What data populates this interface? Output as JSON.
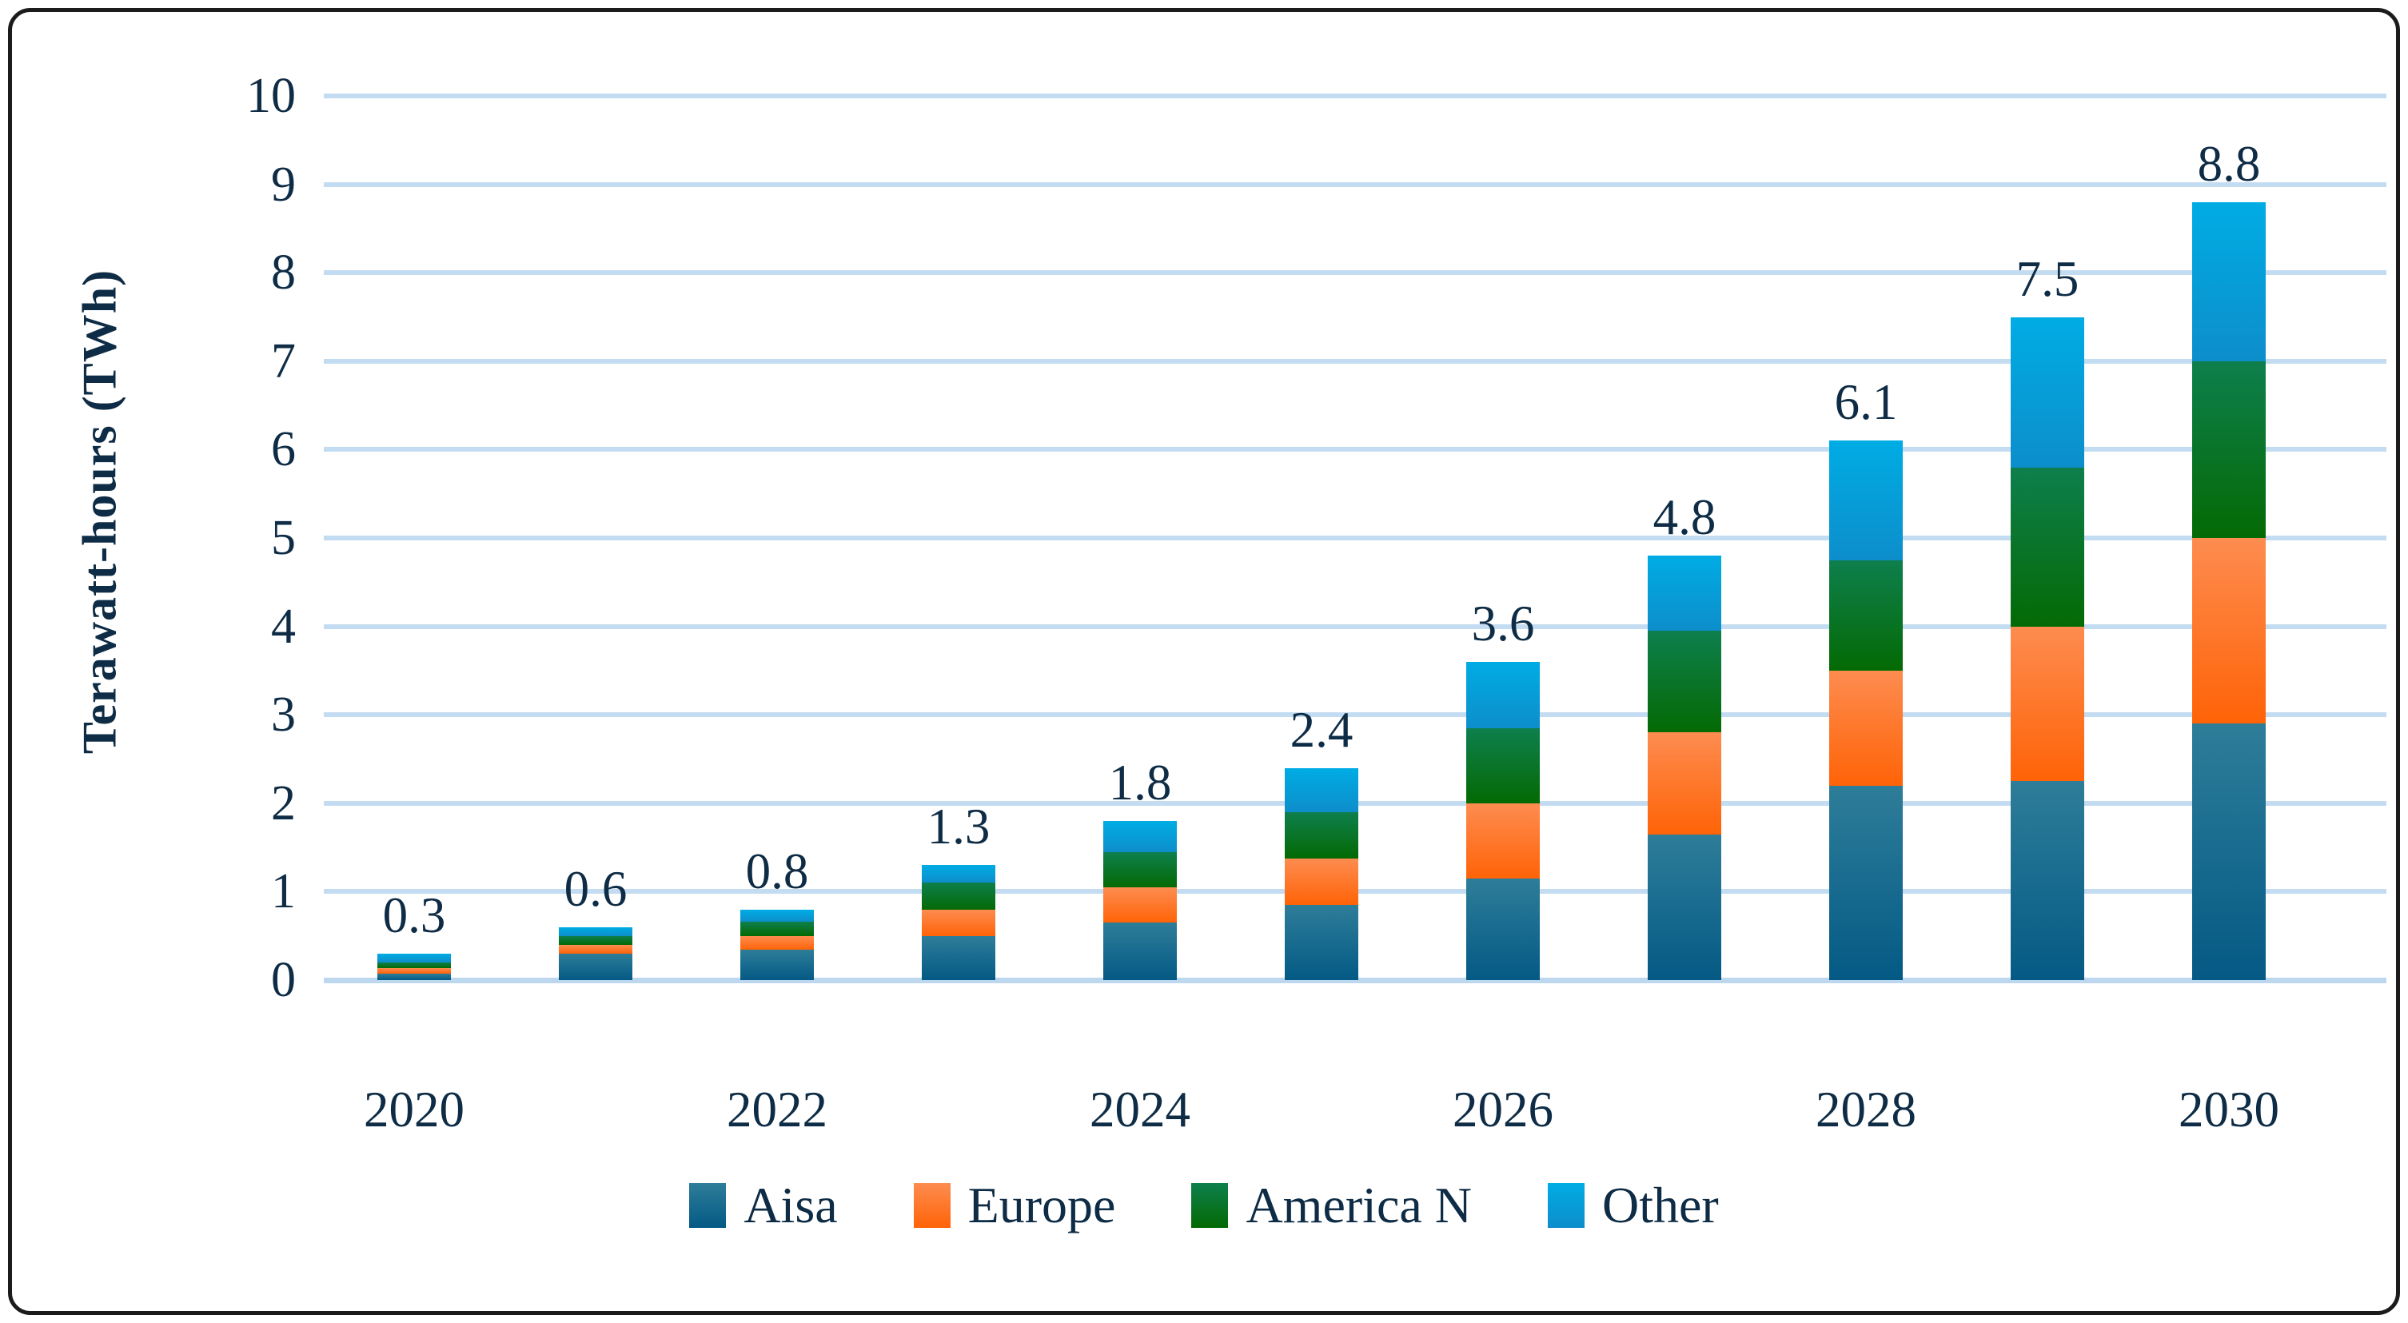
{
  "figure": {
    "border_color": "#1b1b1b",
    "background": "#ffffff",
    "gridline_color": "#c3dcf1",
    "text_color": "#0e2c45"
  },
  "chart_data": {
    "type": "bar",
    "stacked": true,
    "title": "",
    "xlabel": "",
    "ylabel": "Terawatt-hours (TWh)",
    "ylim": [
      0,
      10
    ],
    "grid": true,
    "legend_position": "bottom",
    "categories": [
      "2020",
      "2021",
      "2022",
      "2023",
      "2024",
      "2025",
      "2026",
      "2027",
      "2028",
      "2029",
      "2030"
    ],
    "x_tick_labels": [
      "2020",
      "2022",
      "2024",
      "2026",
      "2028",
      "2030"
    ],
    "y_tick_labels": [
      "0",
      "1",
      "2",
      "3",
      "4",
      "5",
      "6",
      "7",
      "8",
      "9",
      "10"
    ],
    "totals": [
      0.3,
      0.6,
      0.8,
      1.3,
      1.8,
      2.4,
      3.6,
      4.8,
      6.1,
      7.5,
      8.8
    ],
    "total_labels": [
      "0.3",
      "0.6",
      "0.8",
      "1.3",
      "1.8",
      "2.4",
      "3.6",
      "4.8",
      "6.1",
      "7.5",
      "8.8"
    ],
    "series": [
      {
        "name": "Aisa",
        "values": [
          0.07,
          0.3,
          0.34,
          0.5,
          0.65,
          0.85,
          1.15,
          1.65,
          2.2,
          2.25,
          2.9
        ],
        "color_top": "#2e7d99",
        "color_bottom": "#045a85"
      },
      {
        "name": "Europe",
        "values": [
          0.07,
          0.1,
          0.16,
          0.3,
          0.4,
          0.52,
          0.85,
          1.15,
          1.3,
          1.75,
          2.1
        ],
        "color_top": "#fd8c50",
        "color_bottom": "#ff6307"
      },
      {
        "name": "America N",
        "values": [
          0.06,
          0.1,
          0.16,
          0.3,
          0.4,
          0.53,
          0.85,
          1.15,
          1.25,
          1.8,
          2.0
        ],
        "color_top": "#0e7f4d",
        "color_bottom": "#046a04"
      },
      {
        "name": "Other",
        "values": [
          0.1,
          0.1,
          0.14,
          0.2,
          0.35,
          0.5,
          0.75,
          0.85,
          1.35,
          1.7,
          1.8
        ],
        "color_top": "#00ace4",
        "color_bottom": "#0d8ecb"
      }
    ]
  }
}
